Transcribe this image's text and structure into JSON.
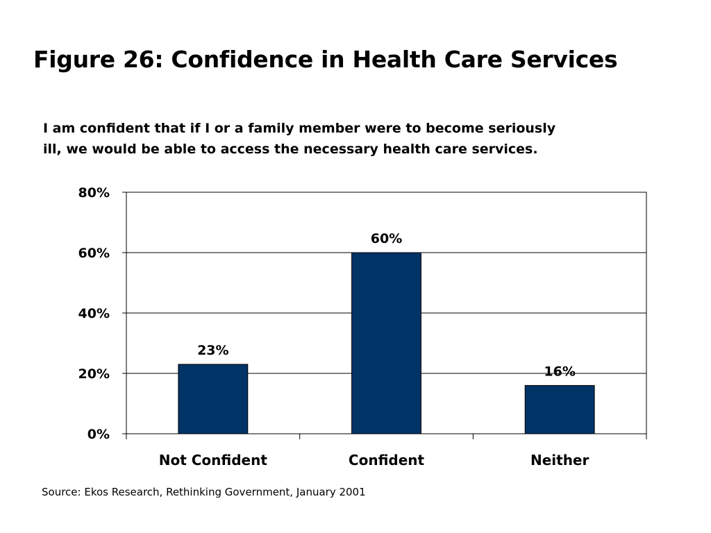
{
  "title": "Figure 26: Confidence in Health Care Services",
  "subtitle_lines": [
    "I am confident that if I or a family member were to become seriously",
    "ill, we would be able to access the necessary health care services."
  ],
  "source": "Source: Ekos Research, Rethinking Government, January 2001",
  "chart_data": {
    "type": "bar",
    "title": "I am confident that if I or a family member were to become seriously ill, we would be able to access the necessary health care services.",
    "xlabel": "",
    "ylabel": "",
    "categories": [
      "Not Confident",
      "Confident",
      "Neither"
    ],
    "values": [
      23,
      60,
      16
    ],
    "data_labels": [
      "23%",
      "60%",
      "16%"
    ],
    "ylim": [
      0,
      80
    ],
    "yticks": [
      0,
      20,
      40,
      60,
      80
    ],
    "ytick_labels": [
      "0%",
      "20%",
      "40%",
      "60%",
      "80%"
    ],
    "grid": true,
    "legend": "none",
    "bar_color": "#003366"
  }
}
